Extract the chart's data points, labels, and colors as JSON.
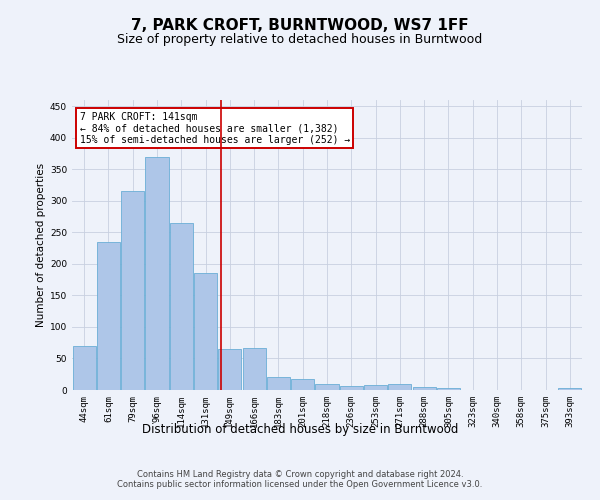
{
  "title": "7, PARK CROFT, BURNTWOOD, WS7 1FF",
  "subtitle": "Size of property relative to detached houses in Burntwood",
  "xlabel": "Distribution of detached houses by size in Burntwood",
  "ylabel": "Number of detached properties",
  "categories": [
    "44sqm",
    "61sqm",
    "79sqm",
    "96sqm",
    "114sqm",
    "131sqm",
    "149sqm",
    "166sqm",
    "183sqm",
    "201sqm",
    "218sqm",
    "236sqm",
    "253sqm",
    "271sqm",
    "288sqm",
    "305sqm",
    "323sqm",
    "340sqm",
    "358sqm",
    "375sqm",
    "393sqm"
  ],
  "values": [
    70,
    235,
    315,
    370,
    265,
    185,
    65,
    67,
    20,
    18,
    10,
    6,
    8,
    9,
    5,
    3,
    0,
    0,
    0,
    0,
    3
  ],
  "bar_color": "#aec6e8",
  "bar_edge_color": "#6aaed6",
  "grid_color": "#c8d0e0",
  "background_color": "#eef2fa",
  "red_line_x": 5.65,
  "annotation_title": "7 PARK CROFT: 141sqm",
  "annotation_line1": "← 84% of detached houses are smaller (1,382)",
  "annotation_line2": "15% of semi-detached houses are larger (252) →",
  "annotation_box_color": "#ffffff",
  "annotation_box_edge": "#cc0000",
  "red_line_color": "#cc0000",
  "ylim": [
    0,
    460
  ],
  "yticks": [
    0,
    50,
    100,
    150,
    200,
    250,
    300,
    350,
    400,
    450
  ],
  "footer_line1": "Contains HM Land Registry data © Crown copyright and database right 2024.",
  "footer_line2": "Contains public sector information licensed under the Open Government Licence v3.0.",
  "title_fontsize": 11,
  "subtitle_fontsize": 9,
  "xlabel_fontsize": 8.5,
  "ylabel_fontsize": 7.5,
  "tick_fontsize": 6.5,
  "annotation_fontsize": 7,
  "footer_fontsize": 6
}
